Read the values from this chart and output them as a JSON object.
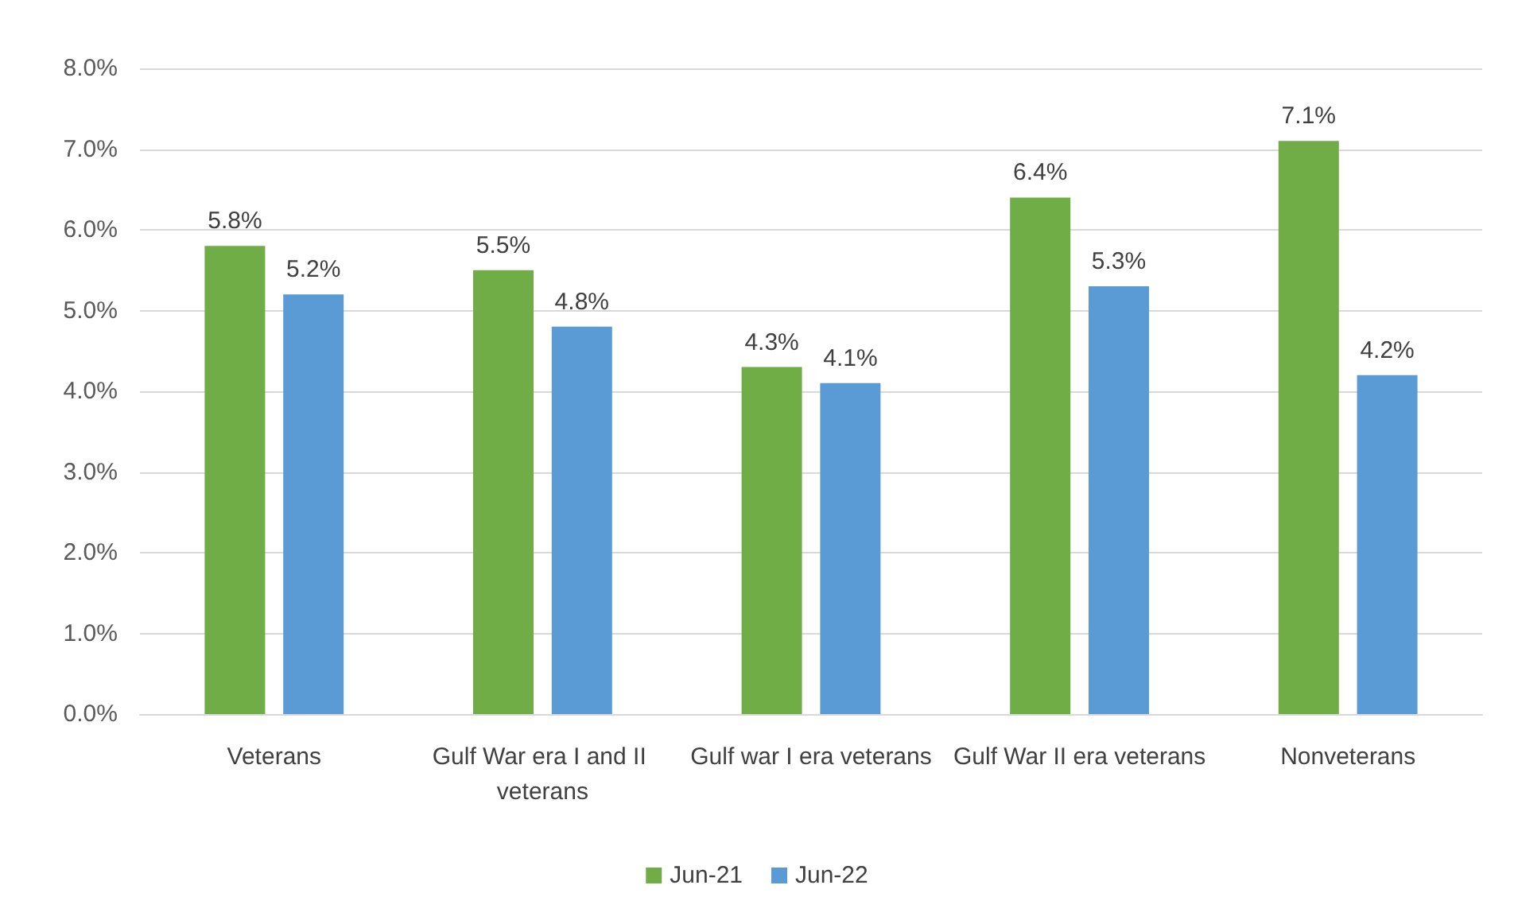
{
  "chart_data": {
    "type": "bar",
    "categories": [
      "Veterans",
      "Gulf War era I and II veterans",
      "Gulf war I era veterans",
      "Gulf War II era veterans",
      "Nonveterans"
    ],
    "series": [
      {
        "name": "Jun-21",
        "color": "#70ad47",
        "values": [
          5.8,
          5.5,
          4.3,
          6.4,
          7.1
        ],
        "value_labels": [
          "5.8%",
          "5.5%",
          "4.3%",
          "6.4%",
          "7.1%"
        ]
      },
      {
        "name": "Jun-22",
        "color": "#5b9bd5",
        "values": [
          5.2,
          4.8,
          4.1,
          5.3,
          4.2
        ],
        "value_labels": [
          "5.2%",
          "4.8%",
          "4.1%",
          "5.3%",
          "4.2%"
        ]
      }
    ],
    "ylim": [
      0,
      8
    ],
    "yticks": [
      {
        "value": 0,
        "label": "0.0%"
      },
      {
        "value": 1,
        "label": "1.0%"
      },
      {
        "value": 2,
        "label": "2.0%"
      },
      {
        "value": 3,
        "label": "3.0%"
      },
      {
        "value": 4,
        "label": "4.0%"
      },
      {
        "value": 5,
        "label": "5.0%"
      },
      {
        "value": 6,
        "label": "6.0%"
      },
      {
        "value": 7,
        "label": "7.0%"
      },
      {
        "value": 8,
        "label": "8.0%"
      }
    ],
    "grid": "y",
    "legend": "bottom"
  }
}
